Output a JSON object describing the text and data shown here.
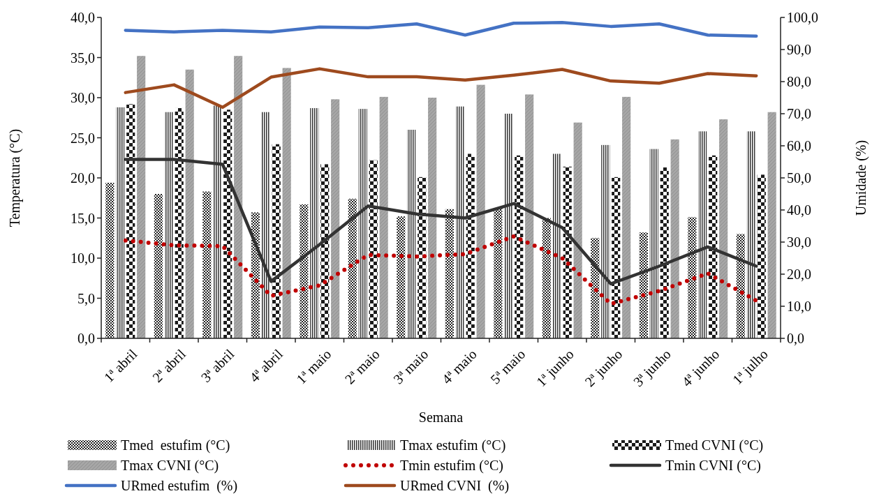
{
  "chart_data": {
    "type": "bar",
    "xlabel": "Semana",
    "ylabel": "Temperatura (°C)",
    "y2label": "Umidade (%)",
    "categories": [
      "1ª abril",
      "2ª abril",
      "3ª abril",
      "4ª abril",
      "1ª maio",
      "2ª maio",
      "3ª maio",
      "4ª maio",
      "5ª maio",
      "1ª junho",
      "2ª junho",
      "3ª junho",
      "4ª junho",
      "1ª julho"
    ],
    "ylim": [
      0,
      40
    ],
    "yticks": [
      {
        "value": 0,
        "label": "0,0"
      },
      {
        "value": 5,
        "label": "5,0"
      },
      {
        "value": 10,
        "label": "10,0"
      },
      {
        "value": 15,
        "label": "15,0"
      },
      {
        "value": 20,
        "label": "20,0"
      },
      {
        "value": 25,
        "label": "25,0"
      },
      {
        "value": 30,
        "label": "30,0"
      },
      {
        "value": 35,
        "label": "35,0"
      },
      {
        "value": 40,
        "label": "40,0"
      }
    ],
    "y2lim": [
      0,
      100
    ],
    "y2ticks": [
      {
        "value": 0,
        "label": "0,0"
      },
      {
        "value": 10,
        "label": "10,0"
      },
      {
        "value": 20,
        "label": "20,0"
      },
      {
        "value": 30,
        "label": "30,0"
      },
      {
        "value": 40,
        "label": "40,0"
      },
      {
        "value": 50,
        "label": "50,0"
      },
      {
        "value": 60,
        "label": "60,0"
      },
      {
        "value": 70,
        "label": "70,0"
      },
      {
        "value": 80,
        "label": "80,0"
      },
      {
        "value": 90,
        "label": "90,0"
      },
      {
        "value": 100,
        "label": "100,0"
      }
    ],
    "legend": "bottom",
    "grid": false,
    "series": [
      {
        "name": "Tmed  estufim (°C)",
        "type": "bar",
        "color": "#222222",
        "values": [
          19.4,
          18.0,
          18.3,
          15.7,
          16.7,
          17.4,
          15.2,
          16.1,
          16.2,
          15.0,
          12.5,
          13.2,
          15.1,
          13.0
        ]
      },
      {
        "name": "Tmax estufim (°C)",
        "type": "bar",
        "color": "#333333",
        "values": [
          28.8,
          28.2,
          29.0,
          28.2,
          28.7,
          28.6,
          26.0,
          28.9,
          28.0,
          23.0,
          24.1,
          23.6,
          25.8,
          25.8
        ]
      },
      {
        "name": "Tmed CVNI (°C)",
        "type": "bar",
        "color": "#1a1a1a",
        "values": [
          29.2,
          28.7,
          28.5,
          24.2,
          21.7,
          22.2,
          20.1,
          23.0,
          22.8,
          21.4,
          20.1,
          21.3,
          22.8,
          20.4
        ]
      },
      {
        "name": "Tmax CVNI (°C)",
        "type": "bar",
        "color": "#a6a6a6",
        "values": [
          35.2,
          33.5,
          35.2,
          33.7,
          29.8,
          30.1,
          30.0,
          31.6,
          30.4,
          26.9,
          30.1,
          24.8,
          27.3,
          28.2
        ]
      },
      {
        "name": "Tmin estufim (°C)",
        "type": "line",
        "line_style": "dotted",
        "color": "#c00000",
        "values": [
          12.2,
          11.6,
          11.5,
          5.3,
          6.6,
          10.4,
          10.2,
          10.5,
          12.7,
          10.0,
          4.3,
          5.9,
          8.1,
          4.7
        ]
      },
      {
        "name": "Tmin CVNI (°C)",
        "type": "line",
        "line_style": "solid",
        "color": "#333333",
        "values": [
          22.3,
          22.3,
          21.7,
          7.1,
          11.7,
          16.5,
          15.5,
          15.0,
          16.8,
          13.8,
          6.8,
          9.0,
          11.4,
          9.0
        ]
      },
      {
        "name": "URmed estufim  (%)",
        "type": "line",
        "line_style": "solid",
        "axis": "y2",
        "color": "#4472c4",
        "values": [
          96.0,
          95.5,
          96.0,
          95.5,
          97.0,
          96.8,
          98.0,
          94.5,
          98.2,
          98.4,
          97.2,
          98.0,
          94.5,
          94.2
        ]
      },
      {
        "name": "URmed CVNI  (%)",
        "type": "line",
        "line_style": "solid",
        "axis": "y2",
        "color": "#9e4a1e",
        "values": [
          76.6,
          79.0,
          72.0,
          81.4,
          84.0,
          81.5,
          81.5,
          80.5,
          82.0,
          83.8,
          80.2,
          79.5,
          82.5,
          81.8
        ]
      }
    ]
  }
}
